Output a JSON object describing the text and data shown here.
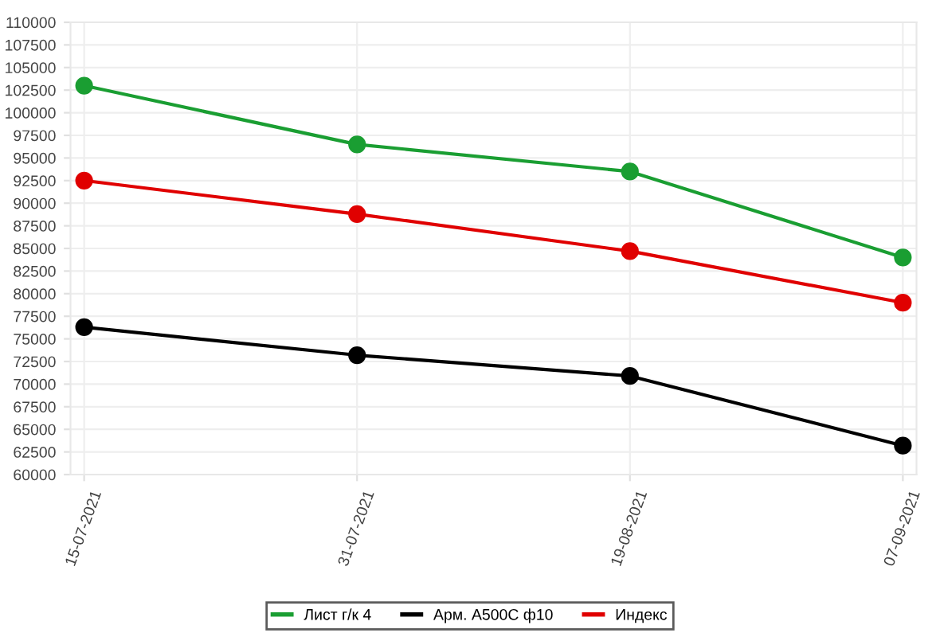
{
  "chart_data": {
    "type": "line",
    "categories": [
      "15-07-2021",
      "31-07-2021",
      "19-08-2021",
      "07-09-2021"
    ],
    "series": [
      {
        "name": "Лист г/к 4",
        "color": "#1a9e32",
        "values": [
          103000,
          96500,
          93500,
          84000
        ]
      },
      {
        "name": "Арм. А500С ф10",
        "color": "#000000",
        "values": [
          76300,
          73200,
          70900,
          63200
        ]
      },
      {
        "name": "Индекс",
        "color": "#e00000",
        "values": [
          92500,
          88800,
          84700,
          79000
        ]
      }
    ],
    "ylim": [
      60000,
      110000
    ],
    "yticks": [
      60000,
      62500,
      65000,
      67500,
      70000,
      72500,
      75000,
      77500,
      80000,
      82500,
      85000,
      87500,
      90000,
      92500,
      95000,
      97500,
      100000,
      102500,
      105000,
      107500,
      110000
    ],
    "grid": true,
    "legend": "bottom",
    "marker": "circle",
    "line_style": "solid"
  }
}
